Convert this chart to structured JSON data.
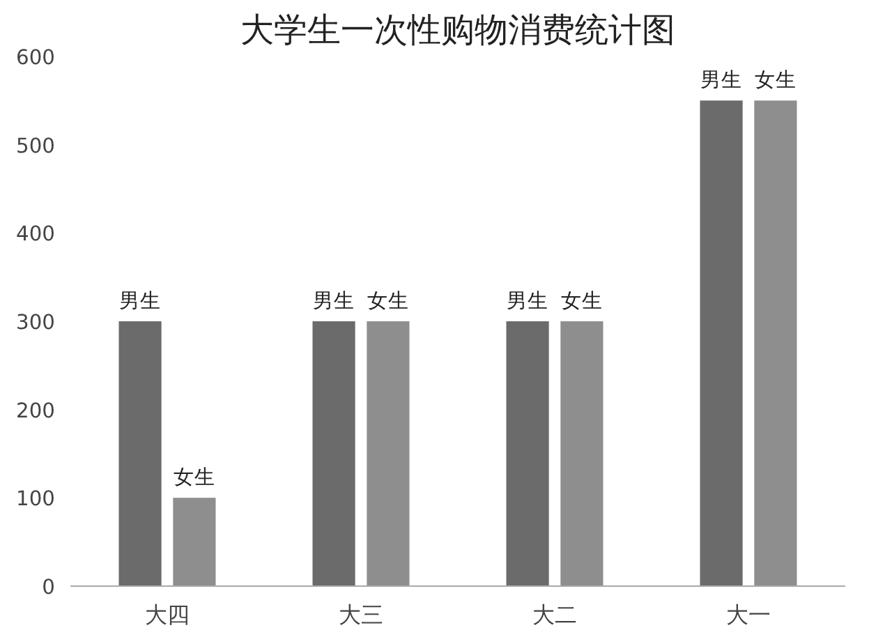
{
  "chart_data": {
    "type": "bar",
    "title": "大学生一次性购物消费统计图",
    "categories": [
      "大四",
      "大三",
      "大二",
      "大一"
    ],
    "series": [
      {
        "name": "男生",
        "color": "#6b6b6b",
        "values": [
          300,
          300,
          300,
          550
        ]
      },
      {
        "name": "女生",
        "color": "#8e8e8e",
        "values": [
          100,
          300,
          300,
          550
        ]
      }
    ],
    "ylim": [
      0,
      600
    ],
    "yticks": [
      0,
      100,
      200,
      300,
      400,
      500,
      600
    ],
    "grid": false,
    "legend": false
  }
}
